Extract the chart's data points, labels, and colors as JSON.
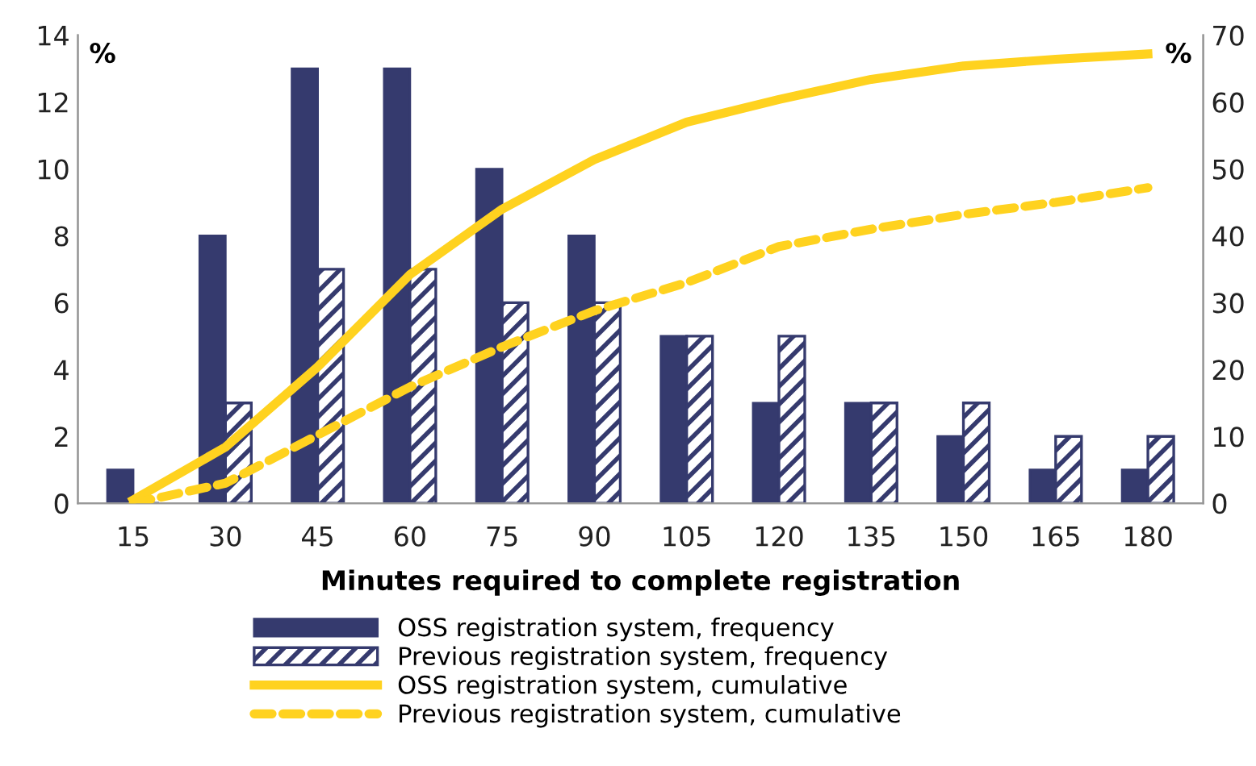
{
  "chart_data": {
    "type": "bar",
    "xlabel": "Minutes required to complete registration",
    "ylabel": "%",
    "y2label": "%",
    "categories": [
      "15",
      "30",
      "45",
      "60",
      "75",
      "90",
      "105",
      "120",
      "135",
      "150",
      "165",
      "180"
    ],
    "series": [
      {
        "name": "OSS registration system, frequency",
        "color": "#353a6e",
        "values": [
          1,
          8,
          13,
          13,
          10,
          8,
          5,
          3,
          3,
          2,
          1,
          1
        ]
      },
      {
        "name": "Previous registration system, frequency",
        "color": "#353a6e",
        "values": [
          0,
          3,
          7,
          7,
          6,
          6,
          5,
          5,
          3,
          3,
          2,
          2
        ]
      },
      {
        "name": "OSS registration system, cumulative",
        "type": "line",
        "axis": "y2",
        "line_style": "solid",
        "color": "#ffd21f",
        "values": [
          0.5,
          8.4,
          20.4,
          34.2,
          44,
          51.4,
          57,
          60.4,
          63.4,
          65.4,
          66.4,
          67.2
        ]
      },
      {
        "name": "Previous registration system, cumulative",
        "type": "line",
        "axis": "y2",
        "line_style": "dashed",
        "color": "#ffd21f",
        "values": [
          0,
          3,
          10.2,
          17.4,
          23.4,
          28.8,
          33,
          38.4,
          41,
          43.2,
          45,
          47.2
        ]
      }
    ],
    "ylim": [
      0,
      14
    ],
    "yticks": [
      0,
      2,
      4,
      6,
      8,
      10,
      12,
      14
    ],
    "y2lim": [
      0,
      70
    ],
    "y2ticks": [
      0,
      10,
      20,
      30,
      40,
      50,
      60,
      70
    ],
    "grid": false,
    "legend": "bottom"
  }
}
